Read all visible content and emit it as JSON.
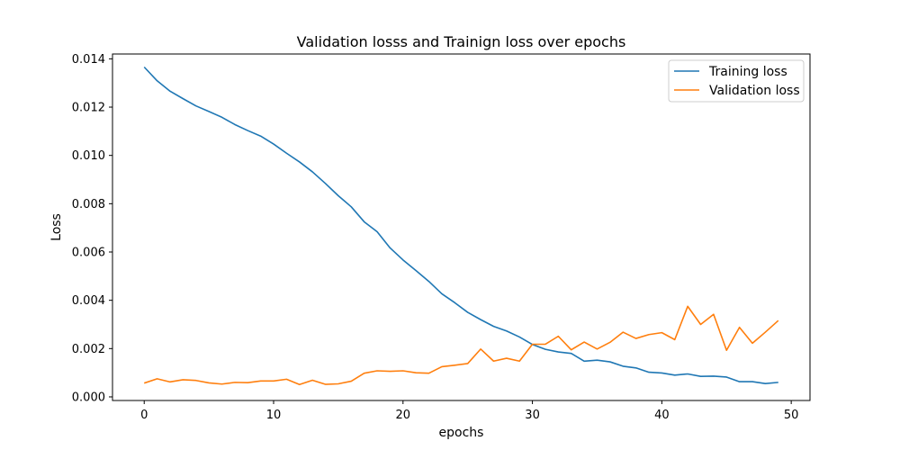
{
  "chart_data": {
    "type": "line",
    "title": "Validation losss and Trainign loss over epochs",
    "xlabel": "epochs",
    "ylabel": "Loss",
    "xlim": [
      -2.45,
      51.45
    ],
    "ylim": [
      -0.00015,
      0.0142
    ],
    "x_ticks": [
      0,
      10,
      20,
      30,
      40,
      50
    ],
    "y_ticks": [
      0.0,
      0.002,
      0.004,
      0.006,
      0.008,
      0.01,
      0.012,
      0.014
    ],
    "y_tick_labels": [
      "0.000",
      "0.002",
      "0.004",
      "0.006",
      "0.008",
      "0.010",
      "0.012",
      "0.014"
    ],
    "legend_position": "top-right",
    "grid": false,
    "x": [
      0,
      1,
      2,
      3,
      4,
      5,
      6,
      7,
      8,
      9,
      10,
      11,
      12,
      13,
      14,
      15,
      16,
      17,
      18,
      19,
      20,
      21,
      22,
      23,
      24,
      25,
      26,
      27,
      28,
      29,
      30,
      31,
      32,
      33,
      34,
      35,
      36,
      37,
      38,
      39,
      40,
      41,
      42,
      43,
      44,
      45,
      46,
      47,
      48,
      49
    ],
    "series": [
      {
        "name": "Training loss",
        "color": "#1f77b4",
        "values": [
          0.01366,
          0.01309,
          0.01266,
          0.01235,
          0.01205,
          0.01182,
          0.01158,
          0.01128,
          0.01103,
          0.0108,
          0.01047,
          0.01009,
          0.00973,
          0.00932,
          0.00884,
          0.00833,
          0.00787,
          0.00725,
          0.00684,
          0.00617,
          0.00567,
          0.00523,
          0.00478,
          0.00427,
          0.0039,
          0.0035,
          0.0032,
          0.00292,
          0.00273,
          0.00248,
          0.00217,
          0.00197,
          0.00186,
          0.0018,
          0.00148,
          0.00152,
          0.00145,
          0.00127,
          0.0012,
          0.00102,
          0.00099,
          0.0009,
          0.00095,
          0.00085,
          0.00086,
          0.00082,
          0.00063,
          0.00063,
          0.00055,
          0.0006
        ]
      },
      {
        "name": "Validation loss",
        "color": "#ff7f0e",
        "values": [
          0.00057,
          0.00075,
          0.00062,
          0.00071,
          0.00068,
          0.00058,
          0.00053,
          0.0006,
          0.00059,
          0.00066,
          0.00066,
          0.00073,
          0.00051,
          0.00069,
          0.00052,
          0.00054,
          0.00065,
          0.00098,
          0.00108,
          0.00106,
          0.00108,
          0.001,
          0.00098,
          0.00125,
          0.00131,
          0.00138,
          0.00198,
          0.00148,
          0.0016,
          0.00148,
          0.00218,
          0.00218,
          0.00251,
          0.00195,
          0.00227,
          0.00198,
          0.00226,
          0.00268,
          0.00242,
          0.00258,
          0.00266,
          0.00237,
          0.00375,
          0.003,
          0.00342,
          0.00193,
          0.00288,
          0.00222,
          0.00268,
          0.00316
        ]
      }
    ]
  }
}
